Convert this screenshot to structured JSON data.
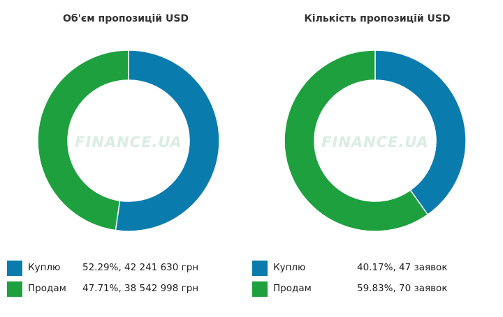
{
  "colors": {
    "buy": "#0a7bad",
    "sell": "#1ea03e"
  },
  "watermark": "FINANCE.UA",
  "chart_data": [
    {
      "type": "pie",
      "title": "Об'єм пропозицій USD",
      "categories": [
        "Куплю",
        "Продам"
      ],
      "values": [
        52.29,
        47.71
      ],
      "labels": [
        "52.29%, 42 241 630 грн",
        "47.71%, 38 542 998 грн"
      ],
      "legend": "bottom"
    },
    {
      "type": "pie",
      "title": "Кількість пропозицій USD",
      "categories": [
        "Куплю",
        "Продам"
      ],
      "values": [
        40.17,
        59.83
      ],
      "labels": [
        "40.17%, 47 заявок",
        "59.83%, 70 заявок"
      ],
      "legend": "bottom"
    }
  ]
}
